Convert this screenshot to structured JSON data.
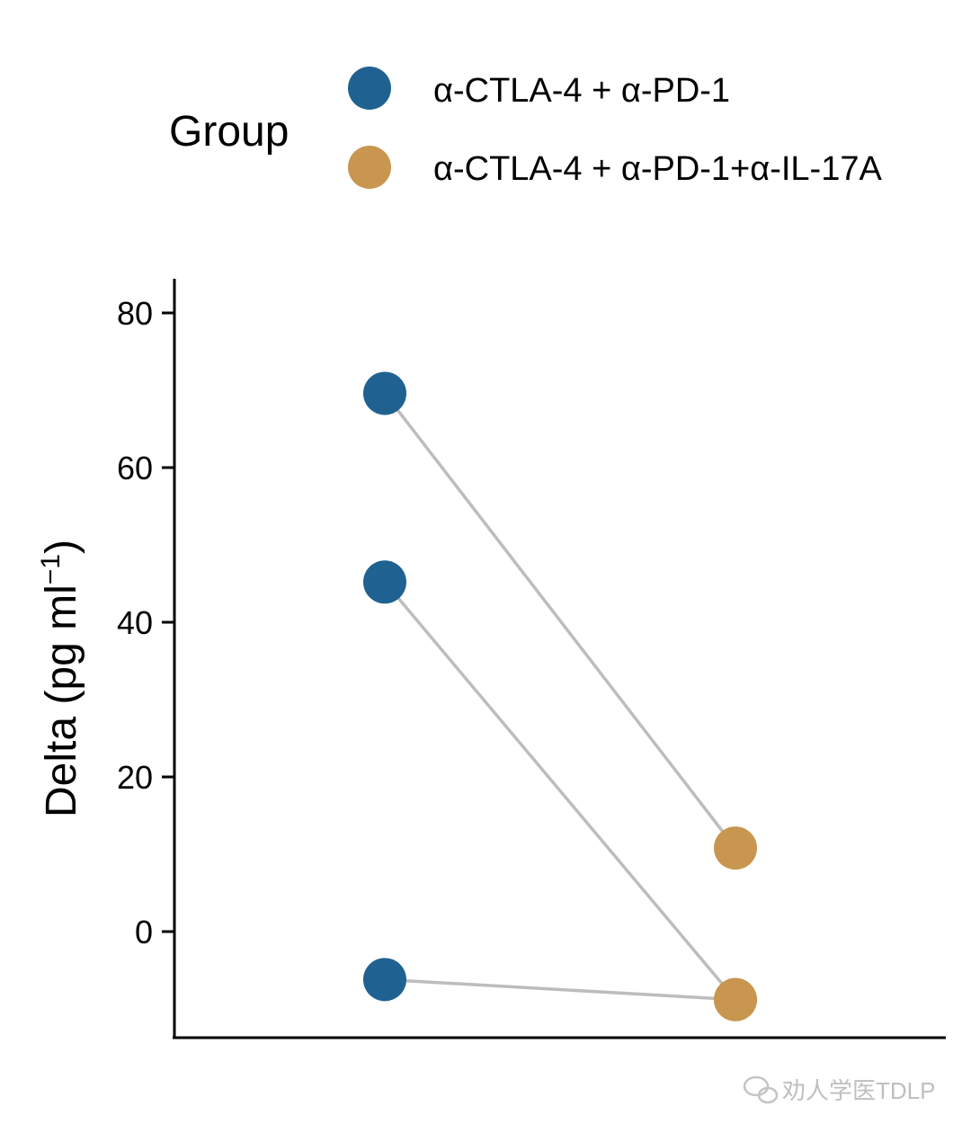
{
  "chart_data": {
    "type": "scatter",
    "subtype": "paired-dot",
    "title": "",
    "xlabel": "",
    "ylabel": "Delta (pg ml",
    "ylabel_superscript": "−1",
    "ylabel_close": ")",
    "ylim": [
      -13,
      84
    ],
    "yticks": [
      0,
      20,
      40,
      60,
      80
    ],
    "legend": {
      "title": "Group",
      "position": "top",
      "entries": [
        {
          "label": "α-CTLA-4 + α-PD-1",
          "color": "#1f6291"
        },
        {
          "label": "α-CTLA-4 + α-PD-1+α-IL-17A",
          "color": "#c8964e"
        }
      ]
    },
    "series": [
      {
        "name": "α-CTLA-4 + α-PD-1",
        "color": "#1f6291",
        "x": [
          1,
          1,
          1
        ],
        "y": [
          69.6,
          45.2,
          -6.2
        ]
      },
      {
        "name": "α-CTLA-4 + α-PD-1+α-IL-17A",
        "color": "#c8964e",
        "x": [
          2,
          2,
          2
        ],
        "y": [
          10.8,
          -8.8,
          -8.8
        ]
      }
    ],
    "pairs": [
      [
        0,
        0
      ],
      [
        1,
        1
      ],
      [
        2,
        2
      ]
    ],
    "pair_line_color": "#bdbdbd"
  },
  "watermark": {
    "text": "劝人学医TDLP"
  }
}
